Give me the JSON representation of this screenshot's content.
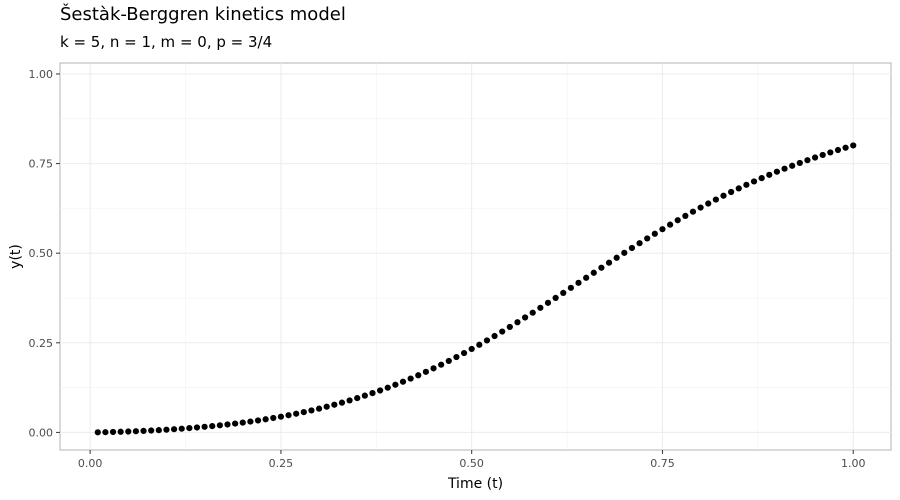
{
  "chart_data": {
    "type": "scatter",
    "title": "Šestàk-Berggren kinetics model",
    "subtitle": "k = 5, n = 1, m = 0, p = 3/4",
    "xlabel": "Time (t)",
    "ylabel": "y(t)",
    "xlim": [
      -0.0395,
      1.0495
    ],
    "ylim": [
      -0.0491,
      1.0306
    ],
    "x_ticks": [
      0.0,
      0.25,
      0.5,
      0.75,
      1.0
    ],
    "x_tick_labels": [
      "0.00",
      "0.25",
      "0.50",
      "0.75",
      "1.00"
    ],
    "y_ticks": [
      0.0,
      0.25,
      0.5,
      0.75,
      1.0
    ],
    "y_tick_labels": [
      "0.00",
      "0.25",
      "0.50",
      "0.75",
      "1.00"
    ],
    "grid": true,
    "point_color": "#000000",
    "x": [
      0.01,
      0.02,
      0.03,
      0.04,
      0.05,
      0.06,
      0.07,
      0.08,
      0.09,
      0.1,
      0.11,
      0.12,
      0.13,
      0.14,
      0.15,
      0.16,
      0.17,
      0.18,
      0.19,
      0.2,
      0.21,
      0.22,
      0.23,
      0.24,
      0.25,
      0.26,
      0.27,
      0.28,
      0.29,
      0.3,
      0.31,
      0.32,
      0.33,
      0.34,
      0.35,
      0.36,
      0.37,
      0.38,
      0.39,
      0.4,
      0.41,
      0.42,
      0.43,
      0.44,
      0.45,
      0.46,
      0.47,
      0.48,
      0.49,
      0.5,
      0.51,
      0.52,
      0.53,
      0.54,
      0.55,
      0.56,
      0.57,
      0.58,
      0.59,
      0.6,
      0.61,
      0.62,
      0.63,
      0.64,
      0.65,
      0.66,
      0.67,
      0.68,
      0.69,
      0.7,
      0.71,
      0.72,
      0.73,
      0.74,
      0.75,
      0.76,
      0.77,
      0.78,
      0.79,
      0.8,
      0.81,
      0.82,
      0.83,
      0.84,
      0.85,
      0.86,
      0.87,
      0.88,
      0.89,
      0.9,
      0.91,
      0.92,
      0.93,
      0.94,
      0.95,
      0.96,
      0.97,
      0.98,
      0.99,
      1.0
    ],
    "y": [
      0.0002,
      0.0006,
      0.0012,
      0.0018,
      0.0025,
      0.0033,
      0.0042,
      0.0052,
      0.0063,
      0.0075,
      0.0089,
      0.0104,
      0.012,
      0.0137,
      0.0156,
      0.0176,
      0.0198,
      0.0221,
      0.0246,
      0.0273,
      0.0302,
      0.0333,
      0.0366,
      0.0402,
      0.0439,
      0.0479,
      0.0521,
      0.0566,
      0.0613,
      0.0663,
      0.0716,
      0.0772,
      0.083,
      0.0892,
      0.0957,
      0.1025,
      0.1096,
      0.117,
      0.1248,
      0.133,
      0.1414,
      0.1502,
      0.1594,
      0.1689,
      0.1787,
      0.1889,
      0.1994,
      0.2102,
      0.2214,
      0.2328,
      0.2445,
      0.2566,
      0.2689,
      0.2814,
      0.2943,
      0.3073,
      0.3206,
      0.334,
      0.3476,
      0.3614,
      0.3753,
      0.3892,
      0.4033,
      0.4173,
      0.4314,
      0.4454,
      0.4594,
      0.4734,
      0.4872,
      0.5009,
      0.5145,
      0.5279,
      0.5411,
      0.5542,
      0.567,
      0.5796,
      0.5919,
      0.604,
      0.6158,
      0.6273,
      0.6386,
      0.6496,
      0.6603,
      0.6707,
      0.6808,
      0.6907,
      0.7002,
      0.7095,
      0.7185,
      0.7273,
      0.7357,
      0.7439,
      0.7518,
      0.7595,
      0.7669,
      0.7741,
      0.7811,
      0.7878,
      0.7942,
      0.8005
    ]
  }
}
